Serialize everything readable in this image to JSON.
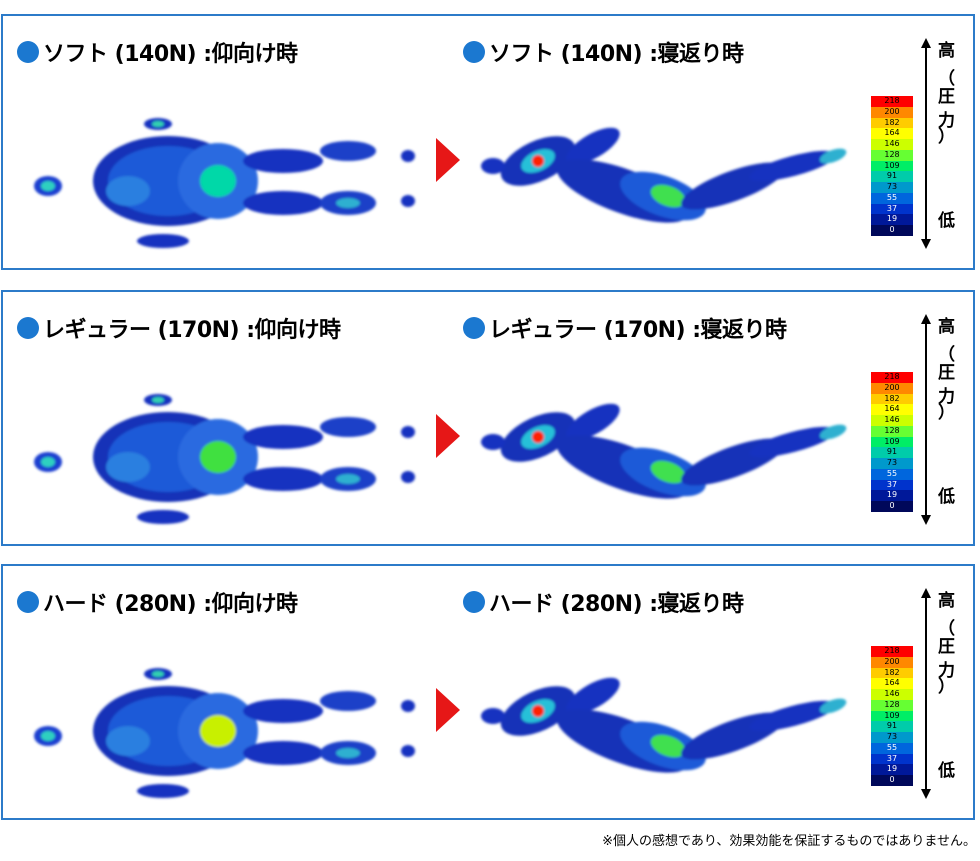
{
  "panels": [
    {
      "left_title": "ソフト (140N) :仰向け時",
      "right_title": "ソフト (140N) :寝返り時",
      "left_hotspot": "#00d8a8",
      "right_hotspot": "#ff2000"
    },
    {
      "left_title": "レギュラー (170N) :仰向け時",
      "right_title": "レギュラー (170N) :寝返り時",
      "left_hotspot": "#40e040",
      "right_hotspot": "#ff2000"
    },
    {
      "left_title": "ハード (280N) :仰向け時",
      "right_title": "ハード (280N) :寝返り時",
      "left_hotspot": "#c8f000",
      "right_hotspot": "#ff2000"
    }
  ],
  "legend": {
    "values": [
      "218",
      "200",
      "182",
      "164",
      "146",
      "128",
      "109",
      "91",
      "73",
      "55",
      "37",
      "19",
      "0"
    ],
    "colors": [
      "#ff0000",
      "#ff8800",
      "#ffcc00",
      "#ffff00",
      "#ccff00",
      "#66ff33",
      "#00ee66",
      "#00ccaa",
      "#0099cc",
      "#0066dd",
      "#0033cc",
      "#001899",
      "#00085a"
    ],
    "high": "高",
    "pressure_open": "（",
    "pressure_1": "圧",
    "pressure_2": "力",
    "pressure_close": "）",
    "low": "低"
  },
  "note": "※個人の感想であり、効果効能を保証するものではありません。"
}
